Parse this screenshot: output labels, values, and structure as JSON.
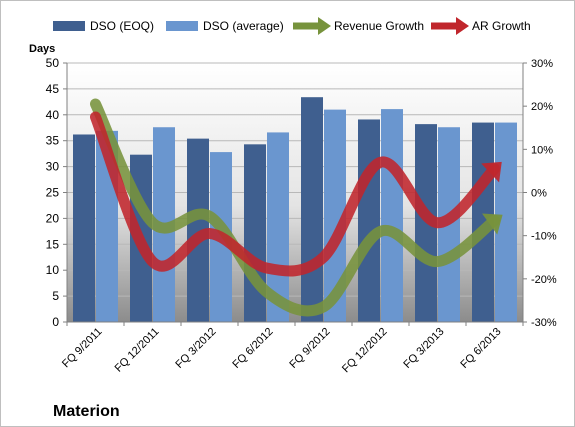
{
  "chart_data": {
    "type": "bar",
    "title": "",
    "company": "Materion",
    "ylabel": "Days",
    "ylim": [
      0,
      50
    ],
    "y_ticks": [
      0,
      5,
      10,
      15,
      20,
      25,
      30,
      35,
      40,
      45,
      50
    ],
    "y2lim": [
      -30,
      30
    ],
    "y2_ticks": [
      "-30%",
      "-20%",
      "-10%",
      "0%",
      "10%",
      "20%",
      "30%"
    ],
    "y2_values": [
      -30,
      -20,
      -10,
      0,
      10,
      20,
      30
    ],
    "categories": [
      "FQ 9/2011",
      "FQ 12/2011",
      "FQ 3/2012",
      "FQ 6/2012",
      "FQ 9/2012",
      "FQ 12/2012",
      "FQ 3/2013",
      "FQ 6/2013"
    ],
    "series": [
      {
        "name": "DSO (EOQ)",
        "type": "bar",
        "axis": "left",
        "color": "#3f5f8f",
        "values": [
          36.2,
          32.3,
          35.4,
          34.3,
          43.4,
          39.1,
          38.2,
          38.5
        ]
      },
      {
        "name": "DSO (average)",
        "type": "bar",
        "axis": "left",
        "color": "#6a96cf",
        "values": [
          36.9,
          37.6,
          32.8,
          36.6,
          41.0,
          41.1,
          37.6,
          38.5
        ]
      },
      {
        "name": "Revenue Growth",
        "type": "line",
        "axis": "right",
        "color": "#77933c",
        "values": [
          20.5,
          -7.0,
          -5.5,
          -23.0,
          -26.5,
          -9.0,
          -16.0,
          -6.5
        ]
      },
      {
        "name": "AR Growth",
        "type": "line",
        "axis": "right",
        "color": "#c0262c",
        "values": [
          17.5,
          -16.0,
          -9.5,
          -17.5,
          -15.0,
          7.0,
          -7.0,
          5.5
        ]
      }
    ],
    "legend_position": "top",
    "grid": true
  }
}
